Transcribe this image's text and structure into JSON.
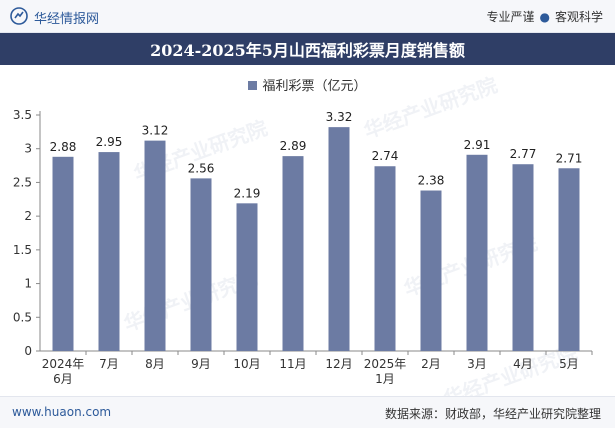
{
  "header": {
    "brand": "华经情报网",
    "slogan_left": "专业严谨",
    "slogan_right": "客观科学",
    "logo_color": "#2d5a9a"
  },
  "title": "2024-2025年5月山西福利彩票月度销售额",
  "legend": {
    "label": "福利彩票（亿元）",
    "color": "#6c7ba3"
  },
  "watermark": "华经产业研究院",
  "footer": {
    "url": "www.huaon.com",
    "source": "数据来源：财政部，华经产业研究院整理"
  },
  "chart_data": {
    "type": "bar",
    "categories": [
      "2024年\n6月",
      "7月",
      "8月",
      "9月",
      "10月",
      "11月",
      "12月",
      "2025年\n1月",
      "2月",
      "3月",
      "4月",
      "5月"
    ],
    "series": [
      {
        "name": "福利彩票（亿元）",
        "values": [
          2.88,
          2.95,
          3.12,
          2.56,
          2.19,
          2.89,
          3.32,
          2.74,
          2.38,
          2.91,
          2.77,
          2.71
        ]
      }
    ],
    "ylim": [
      0,
      3.5
    ],
    "yticks": [
      "0",
      "0.5",
      "1",
      "1.5",
      "2",
      "2.5",
      "3",
      "3.5"
    ],
    "grid": false,
    "legend_position": "top-center",
    "bar_color": "#6c7ba3"
  }
}
